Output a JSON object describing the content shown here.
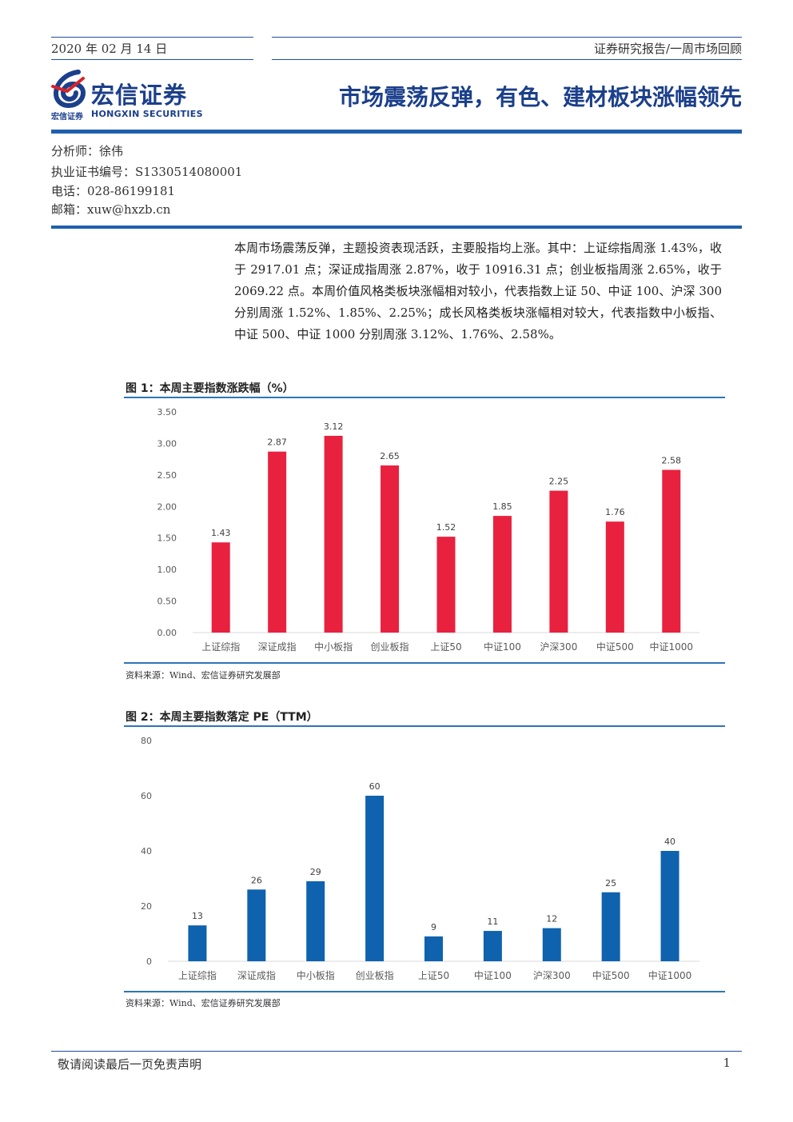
{
  "header": {
    "date": "2020 年 02 月 14 日",
    "series": "证券研究报告/一周市场回顾",
    "title": "市场震荡反弹，有色、建材板块涨幅领先"
  },
  "brand": {
    "name_cn": "宏信证券",
    "name_en": "HONGXIN SECURITIES",
    "name_small": "宏信证券",
    "colors": {
      "blue": "#1b3f8b",
      "red": "#d8232a"
    }
  },
  "analyst": {
    "name": "分析师：徐伟",
    "license": "执业证书编号：S1330514080001",
    "phone": "电话：028-86199181",
    "email": "邮箱：xuw@hxzb.cn"
  },
  "summary": "本周市场震荡反弹，主题投资表现活跃，主要股指均上涨。其中：上证综指周涨 1.43%，收于 2917.01 点；深证成指周涨 2.87%，收于 10916.31 点；创业板指周涨 2.65%，收于 2069.22 点。本周价值风格类板块涨幅相对较小，代表指数上证 50、中证 100、沪深 300 分别周涨 1.52%、1.85%、2.25%；成长风格类板块涨幅相对较大，代表指数中小板指、中证 500、中证 1000 分别周涨 3.12%、1.76%、2.58%。",
  "figures": [
    {
      "title": "图 1：本周主要指数涨跌幅（%）",
      "source": "资料来源：Wind、宏信证券研究发展部"
    },
    {
      "title": "图 2：本周主要指数落定 PE（TTM）",
      "source": "资料来源：Wind、宏信证券研究发展部"
    }
  ],
  "chart_data": [
    {
      "type": "bar",
      "categories": [
        "上证综指",
        "深证成指",
        "中小板指",
        "创业板指",
        "上证50",
        "中证100",
        "沪深300",
        "中证500",
        "中证1000"
      ],
      "values": [
        1.43,
        2.87,
        3.12,
        2.65,
        1.52,
        1.85,
        2.25,
        1.76,
        2.58
      ],
      "labels": [
        "1.43",
        "2.87",
        "3.12",
        "2.65",
        "1.52",
        "1.85",
        "2.25",
        "1.76",
        "2.58"
      ],
      "yticks": [
        "0.00",
        "0.50",
        "1.00",
        "1.50",
        "2.00",
        "2.50",
        "3.00",
        "3.50"
      ],
      "ylim": [
        0,
        3.5
      ],
      "color": "#e8213f",
      "grid": false
    },
    {
      "type": "bar",
      "categories": [
        "上证综指",
        "深证成指",
        "中小板指",
        "创业板指",
        "上证50",
        "中证100",
        "沪深300",
        "中证500",
        "中证1000"
      ],
      "values": [
        13,
        26,
        29,
        60,
        9,
        11,
        12,
        25,
        40
      ],
      "labels": [
        "13",
        "26",
        "29",
        "60",
        "9",
        "11",
        "12",
        "25",
        "40"
      ],
      "yticks": [
        "0",
        "20",
        "40",
        "60",
        "80"
      ],
      "ylim": [
        0,
        80
      ],
      "color": "#0f62ad",
      "grid": false
    }
  ],
  "footer": {
    "disclaimer": "敬请阅读最后一页免责声明",
    "page": "1"
  }
}
